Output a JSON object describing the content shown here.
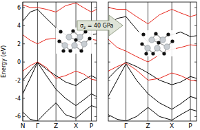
{
  "chart_data": [
    {
      "type": "line",
      "y_label": "Energy (eV)",
      "x": [
        0,
        0.1,
        0.2,
        0.32,
        0.45,
        0.58,
        0.72,
        0.82,
        0.93,
        1.0
      ],
      "xlim": [
        0,
        1
      ],
      "ylim": [
        -6.5,
        6.6
      ],
      "xticks": [
        {
          "value": 0,
          "label": "N"
        },
        {
          "value": 0.2,
          "label": "Γ"
        },
        {
          "value": 0.45,
          "label": "Z"
        },
        {
          "value": 0.72,
          "label": "X"
        },
        {
          "value": 0.93,
          "label": "P"
        }
      ],
      "yticks": [
        -6,
        -4,
        -2,
        0,
        2,
        4,
        6
      ],
      "grid": true,
      "series": [
        {
          "color": "#000000",
          "values": [
            -2.0,
            -1.0,
            0,
            -0.8,
            -1.5,
            -2.2,
            -2.6,
            -2.0,
            -1.5,
            -1.8
          ]
        },
        {
          "color": "#e8281e",
          "values": [
            -1.0,
            -0.4,
            0,
            -0.6,
            -1.8,
            -1.5,
            -1.0,
            -1.3,
            -1.9,
            -2.0
          ]
        },
        {
          "color": "#000000",
          "values": [
            -3.5,
            -1.8,
            -0.05,
            -1.5,
            -3.0,
            -4.0,
            -4.8,
            -4.2,
            -3.5,
            -3.8
          ]
        },
        {
          "color": "#000000",
          "values": [
            -5.5,
            -6.3,
            -6.5,
            -5.5,
            -4.5,
            -5.8,
            -6.2,
            -5.5,
            -4.8,
            -5.0
          ]
        },
        {
          "color": "#e8281e",
          "values": [
            3.0,
            2.4,
            2.0,
            2.5,
            2.6,
            2.0,
            1.8,
            2.1,
            2.5,
            2.4
          ]
        },
        {
          "color": "#000000",
          "values": [
            4.5,
            5.5,
            5.8,
            4.8,
            3.8,
            3.0,
            3.2,
            3.6,
            3.0,
            3.1
          ]
        },
        {
          "color": "#e8281e",
          "values": [
            6.3,
            6.0,
            6.0,
            5.8,
            5.5,
            6.2,
            6.5,
            6.0,
            5.5,
            5.8
          ]
        }
      ]
    },
    {
      "type": "line",
      "tick_labels": "x",
      "x": [
        0,
        0.1,
        0.2,
        0.32,
        0.45,
        0.58,
        0.72,
        0.82,
        0.93,
        1.0
      ],
      "xlim": [
        0,
        1
      ],
      "ylim": [
        -6.5,
        6.6
      ],
      "xticks": [
        {
          "value": 0.2,
          "label": "Γ"
        },
        {
          "value": 0.45,
          "label": "Z"
        },
        {
          "value": 0.72,
          "label": "X"
        },
        {
          "value": 0.93,
          "label": "P"
        }
      ],
      "yticks": [
        -6,
        -4,
        -2,
        0,
        2,
        4,
        6
      ],
      "grid": true,
      "series": [
        {
          "color": "#000000",
          "values": [
            -1.8,
            -0.8,
            0,
            -0.5,
            -1.2,
            -2.0,
            -2.5,
            -2.2,
            -1.6,
            -1.8
          ]
        },
        {
          "color": "#e8281e",
          "values": [
            -1.0,
            -0.5,
            -0.1,
            -0.9,
            -2.0,
            -1.8,
            -1.2,
            -1.5,
            -2.0,
            -2.1
          ]
        },
        {
          "color": "#000000",
          "values": [
            -3.8,
            -2.0,
            -0.2,
            -2.0,
            -3.5,
            -4.5,
            -5.2,
            -4.6,
            -3.8,
            -4.0
          ]
        },
        {
          "color": "#000000",
          "values": [
            -5.8,
            -6.3,
            -6.5,
            -6.0,
            -5.0,
            -6.0,
            -6.4,
            -5.8,
            -5.2,
            -5.4
          ]
        },
        {
          "color": "#e8281e",
          "values": [
            2.5,
            1.6,
            1.2,
            0.6,
            0.0,
            0.8,
            1.4,
            1.6,
            1.9,
            1.8
          ]
        },
        {
          "color": "#000000",
          "values": [
            4.0,
            4.8,
            5.0,
            3.6,
            2.2,
            2.6,
            3.0,
            3.3,
            2.8,
            2.9
          ]
        },
        {
          "color": "#e8281e",
          "values": [
            6.0,
            5.8,
            5.8,
            5.0,
            4.2,
            5.2,
            5.8,
            5.4,
            5.0,
            5.2
          ]
        }
      ]
    }
  ],
  "annotation": {
    "symbol": "σ",
    "subscript": "z",
    "text": " = 40 GPa"
  }
}
